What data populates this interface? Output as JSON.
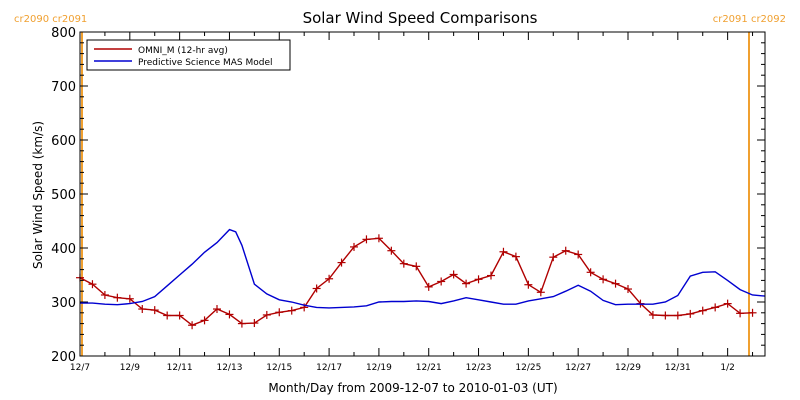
{
  "chart_data": {
    "type": "line",
    "title": "Solar Wind Speed Comparisons",
    "xlabel": "Month/Day from 2009-12-07 to 2010-01-03 (UT)",
    "ylabel": "Solar Wind Speed (km/s)",
    "ylim": [
      200,
      800
    ],
    "xlim": [
      "2009-12-07",
      "2010-01-03"
    ],
    "yticks": [
      200,
      300,
      400,
      500,
      600,
      700,
      800
    ],
    "xticks": [
      {
        "label": "12/7",
        "date": "2009-12-07"
      },
      {
        "label": "12/9",
        "date": "2009-12-09"
      },
      {
        "label": "12/11",
        "date": "2009-12-11"
      },
      {
        "label": "12/13",
        "date": "2009-12-13"
      },
      {
        "label": "12/15",
        "date": "2009-12-15"
      },
      {
        "label": "12/17",
        "date": "2009-12-17"
      },
      {
        "label": "12/19",
        "date": "2009-12-19"
      },
      {
        "label": "12/21",
        "date": "2009-12-21"
      },
      {
        "label": "12/23",
        "date": "2009-12-23"
      },
      {
        "label": "12/25",
        "date": "2009-12-25"
      },
      {
        "label": "12/27",
        "date": "2009-12-27"
      },
      {
        "label": "12/29",
        "date": "2009-12-29"
      },
      {
        "label": "12/31",
        "date": "2009-12-31"
      },
      {
        "label": "1/2",
        "date": "2010-01-02"
      }
    ],
    "legend": {
      "placement": "top-left"
    },
    "grid": false,
    "rotation_markers": [
      {
        "labels": [
          "cr2090",
          "cr2091"
        ],
        "date": "2009-12-07",
        "position": "left"
      },
      {
        "labels": [
          "cr2091",
          "cr2092"
        ],
        "date": "2010-01-03",
        "position": "right"
      }
    ],
    "series": [
      {
        "name": "OMNI_M (12-hr avg)",
        "color": "#b00000",
        "markers": "plus",
        "points": [
          [
            "2009-12-07 00:00",
            345
          ],
          [
            "2009-12-07 12:00",
            333
          ],
          [
            "2009-12-08 00:00",
            313
          ],
          [
            "2009-12-08 12:00",
            308
          ],
          [
            "2009-12-09 00:00",
            306
          ],
          [
            "2009-12-09 12:00",
            287
          ],
          [
            "2009-12-10 00:00",
            285
          ],
          [
            "2009-12-10 12:00",
            275
          ],
          [
            "2009-12-11 00:00",
            275
          ],
          [
            "2009-12-11 12:00",
            257
          ],
          [
            "2009-12-12 00:00",
            266
          ],
          [
            "2009-12-12 12:00",
            287
          ],
          [
            "2009-12-13 00:00",
            277
          ],
          [
            "2009-12-13 12:00",
            260
          ],
          [
            "2009-12-14 00:00",
            261
          ],
          [
            "2009-12-14 12:00",
            276
          ],
          [
            "2009-12-15 00:00",
            281
          ],
          [
            "2009-12-15 12:00",
            284
          ],
          [
            "2009-12-16 00:00",
            290
          ],
          [
            "2009-12-16 12:00",
            325
          ],
          [
            "2009-12-17 00:00",
            343
          ],
          [
            "2009-12-17 12:00",
            373
          ],
          [
            "2009-12-18 00:00",
            402
          ],
          [
            "2009-12-18 12:00",
            416
          ],
          [
            "2009-12-19 00:00",
            418
          ],
          [
            "2009-12-19 12:00",
            395
          ],
          [
            "2009-12-20 00:00",
            371
          ],
          [
            "2009-12-20 12:00",
            366
          ],
          [
            "2009-12-21 00:00",
            328
          ],
          [
            "2009-12-21 12:00",
            338
          ],
          [
            "2009-12-22 00:00",
            351
          ],
          [
            "2009-12-22 12:00",
            334
          ],
          [
            "2009-12-23 00:00",
            342
          ],
          [
            "2009-12-23 12:00",
            349
          ],
          [
            "2009-12-24 00:00",
            393
          ],
          [
            "2009-12-24 12:00",
            384
          ],
          [
            "2009-12-25 00:00",
            332
          ],
          [
            "2009-12-25 12:00",
            318
          ],
          [
            "2009-12-26 00:00",
            383
          ],
          [
            "2009-12-26 12:00",
            395
          ],
          [
            "2009-12-27 00:00",
            388
          ],
          [
            "2009-12-27 12:00",
            355
          ],
          [
            "2009-12-28 00:00",
            342
          ],
          [
            "2009-12-28 12:00",
            334
          ],
          [
            "2009-12-29 00:00",
            324
          ],
          [
            "2009-12-29 12:00",
            297
          ],
          [
            "2009-12-30 00:00",
            276
          ],
          [
            "2009-12-30 12:00",
            275
          ],
          [
            "2009-12-31 00:00",
            275
          ],
          [
            "2009-12-31 12:00",
            278
          ],
          [
            "2010-01-01 00:00",
            284
          ],
          [
            "2010-01-01 12:00",
            290
          ],
          [
            "2010-01-02 00:00",
            297
          ],
          [
            "2010-01-02 12:00",
            279
          ],
          [
            "2010-01-03 00:00",
            280
          ]
        ]
      },
      {
        "name": "Predictive Science MAS Model",
        "color": "#0000d0",
        "markers": "none",
        "points": [
          [
            "2009-12-07 00:00",
            298
          ],
          [
            "2009-12-07 12:00",
            298
          ],
          [
            "2009-12-08 00:00",
            296
          ],
          [
            "2009-12-08 12:00",
            295
          ],
          [
            "2009-12-09 00:00",
            297
          ],
          [
            "2009-12-09 12:00",
            301
          ],
          [
            "2009-12-10 00:00",
            310
          ],
          [
            "2009-12-10 12:00",
            330
          ],
          [
            "2009-12-11 00:00",
            350
          ],
          [
            "2009-12-11 12:00",
            370
          ],
          [
            "2009-12-12 00:00",
            392
          ],
          [
            "2009-12-12 12:00",
            410
          ],
          [
            "2009-12-13 00:00",
            434
          ],
          [
            "2009-12-13 06:00",
            430
          ],
          [
            "2009-12-13 12:00",
            405
          ],
          [
            "2009-12-14 00:00",
            333
          ],
          [
            "2009-12-14 12:00",
            315
          ],
          [
            "2009-12-15 00:00",
            304
          ],
          [
            "2009-12-15 12:00",
            300
          ],
          [
            "2009-12-16 00:00",
            294
          ],
          [
            "2009-12-16 12:00",
            290
          ],
          [
            "2009-12-17 00:00",
            289
          ],
          [
            "2009-12-17 12:00",
            290
          ],
          [
            "2009-12-18 00:00",
            291
          ],
          [
            "2009-12-18 12:00",
            293
          ],
          [
            "2009-12-19 00:00",
            300
          ],
          [
            "2009-12-19 12:00",
            301
          ],
          [
            "2009-12-20 00:00",
            301
          ],
          [
            "2009-12-20 12:00",
            302
          ],
          [
            "2009-12-21 00:00",
            301
          ],
          [
            "2009-12-21 12:00",
            297
          ],
          [
            "2009-12-22 00:00",
            302
          ],
          [
            "2009-12-22 12:00",
            308
          ],
          [
            "2009-12-23 00:00",
            304
          ],
          [
            "2009-12-23 12:00",
            300
          ],
          [
            "2009-12-24 00:00",
            296
          ],
          [
            "2009-12-24 12:00",
            296
          ],
          [
            "2009-12-25 00:00",
            302
          ],
          [
            "2009-12-25 12:00",
            306
          ],
          [
            "2009-12-26 00:00",
            310
          ],
          [
            "2009-12-26 12:00",
            320
          ],
          [
            "2009-12-27 00:00",
            331
          ],
          [
            "2009-12-27 12:00",
            320
          ],
          [
            "2009-12-28 00:00",
            303
          ],
          [
            "2009-12-28 12:00",
            295
          ],
          [
            "2009-12-29 00:00",
            296
          ],
          [
            "2009-12-29 12:00",
            296
          ],
          [
            "2009-12-30 00:00",
            296
          ],
          [
            "2009-12-30 12:00",
            300
          ],
          [
            "2009-12-31 00:00",
            312
          ],
          [
            "2009-12-31 12:00",
            348
          ],
          [
            "2010-01-01 00:00",
            355
          ],
          [
            "2010-01-01 12:00",
            356
          ],
          [
            "2010-01-02 00:00",
            340
          ],
          [
            "2010-01-02 12:00",
            323
          ],
          [
            "2010-01-03 00:00",
            313
          ],
          [
            "2010-01-03 12:00",
            311
          ]
        ]
      }
    ]
  }
}
